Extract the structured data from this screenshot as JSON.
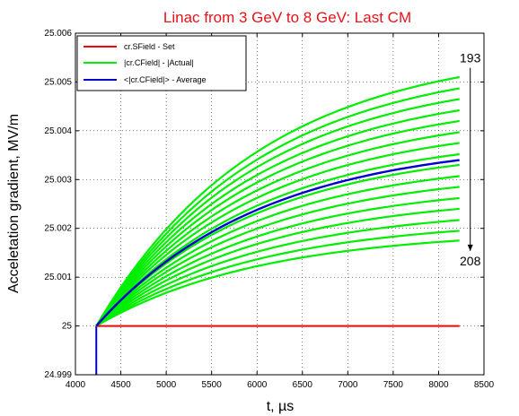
{
  "chart_data": {
    "type": "line",
    "title": "Linac from 3 GeV to 8 GeV: Last CM",
    "xlabel": "t, µs",
    "ylabel": "Acceletation gradient, MV/m",
    "xlim": [
      4000,
      8500
    ],
    "ylim": [
      24.999,
      25.006
    ],
    "xticks": [
      4000,
      4500,
      5000,
      5500,
      6000,
      6500,
      7000,
      7500,
      8000,
      8500
    ],
    "yticks": [
      24.999,
      25,
      25.001,
      25.002,
      25.003,
      25.004,
      25.005,
      25.006
    ],
    "xtick_labels": [
      "4000",
      "4500",
      "5000",
      "5500",
      "6000",
      "6500",
      "7000",
      "7500",
      "8000",
      "8500"
    ],
    "ytick_labels": [
      "24.999",
      "25",
      "25.001",
      "25.002",
      "25.003",
      "25.004",
      "25.005",
      "25.006"
    ],
    "grid": true,
    "legend_position": "top-left",
    "legend": [
      {
        "label": "cr.SField - Set",
        "color": "#ff0000"
      },
      {
        "label": "|cr.CField| - |Actual|",
        "color": "#00ee00"
      },
      {
        "label": "<|cr.CField|> - Average",
        "color": "#0000cc"
      }
    ],
    "series": [
      {
        "key": "set",
        "color": "#ff0000",
        "x": [
          4230,
          8230
        ],
        "y": [
          25.0,
          25.0
        ]
      },
      {
        "key": "actual",
        "color": "#00ee00",
        "x_start": 4230,
        "x_end": 8230,
        "y_start": 25.0,
        "y_end": [
          25.0051,
          25.00487,
          25.00465,
          25.00442,
          25.0042,
          25.00397,
          25.00375,
          25.00352,
          25.0033,
          25.00307,
          25.00285,
          25.00262,
          25.0024,
          25.00217,
          25.00195,
          25.00175
        ],
        "step": {
          "x": 4230,
          "y_from": 24.999,
          "y_to": 25.0
        }
      },
      {
        "key": "average",
        "color": "#0000cc",
        "x_start": 4230,
        "x_end": 8230,
        "y_start": 25.0,
        "y_end": 25.0034
      }
    ],
    "annotations": [
      {
        "text": "193",
        "x": 8230,
        "y": 25.0054
      },
      {
        "text": "208",
        "x": 8230,
        "y": 25.0015
      }
    ]
  }
}
